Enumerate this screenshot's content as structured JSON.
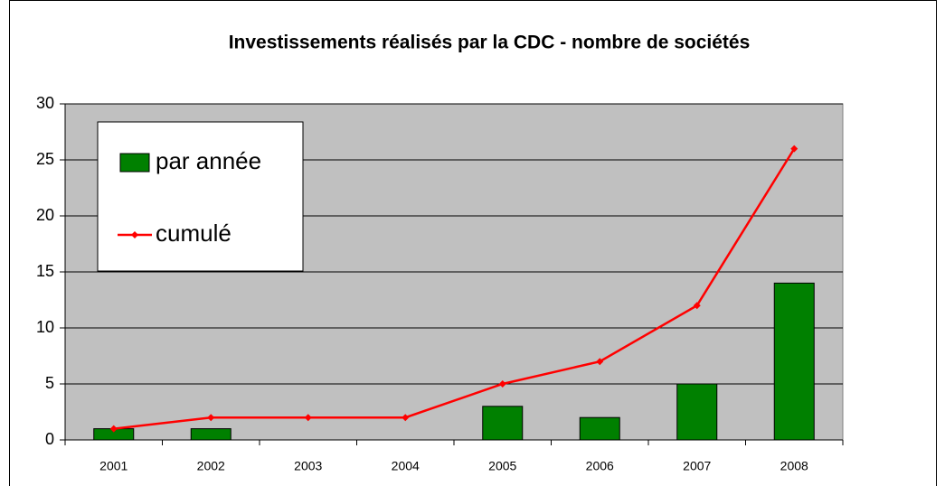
{
  "chart_data": {
    "type": "bar",
    "title": "Investissements réalisés par la CDC - nombre de sociétés",
    "categories": [
      "2001",
      "2002",
      "2003",
      "2004",
      "2005",
      "2006",
      "2007",
      "2008"
    ],
    "series": [
      {
        "name": "par année",
        "type": "bar",
        "color": "#008000",
        "values": [
          1,
          1,
          0,
          0,
          3,
          2,
          5,
          14
        ]
      },
      {
        "name": "cumulé",
        "type": "line",
        "color": "#ff0000",
        "values": [
          1,
          2,
          2,
          2,
          5,
          7,
          12,
          26
        ]
      }
    ],
    "ylim": [
      0,
      30
    ],
    "yticks": [
      0,
      5,
      10,
      15,
      20,
      25,
      30
    ],
    "grid": true,
    "legend": "top-left"
  }
}
